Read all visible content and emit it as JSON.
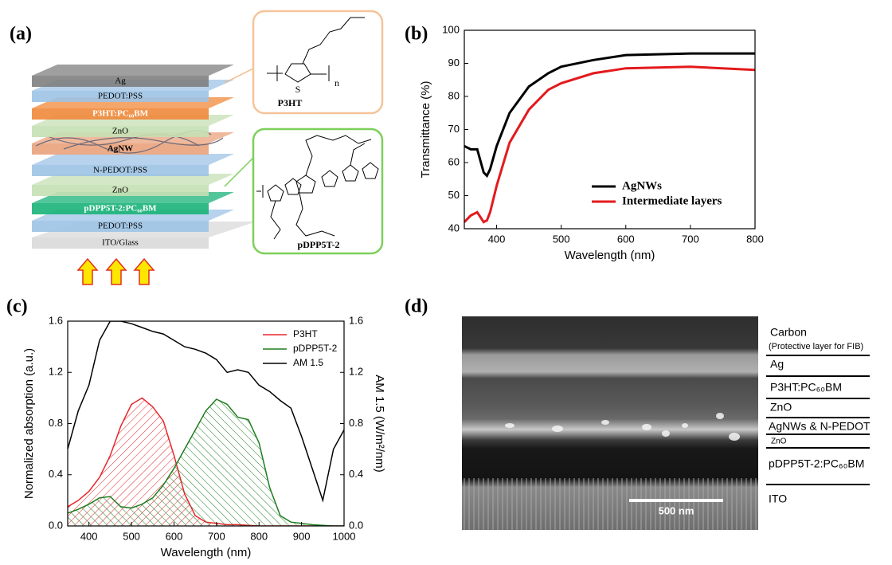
{
  "diagram": {
    "panel_label": "(a)",
    "layers": [
      "Ag",
      "PEDOT:PSS",
      "P3HT:PC₆₀BM",
      "ZnO",
      "AgNW",
      "N-PEDOT:PSS",
      "ZnO",
      "pDPP5T-2:PC₆₀BM",
      "PEDOT:PSS",
      "ITO/Glass"
    ],
    "structures": [
      {
        "name": "P3HT",
        "atom": "S",
        "repeat": "n"
      },
      {
        "name": "pDPP5T-2"
      }
    ]
  },
  "chart_data": [
    {
      "type": "line",
      "panel_label": "(b)",
      "x_label": "Wavelength (nm)",
      "y_label": "Transmittance (%)",
      "x": [
        350,
        360,
        370,
        380,
        385,
        390,
        400,
        420,
        450,
        480,
        500,
        550,
        600,
        700,
        800
      ],
      "xlim": [
        350,
        800
      ],
      "xticks": [
        400,
        500,
        600,
        700,
        800
      ],
      "ylim": [
        40,
        100
      ],
      "yticks": [
        40,
        50,
        60,
        70,
        80,
        90,
        100
      ],
      "legend_position": "lower right",
      "series": [
        {
          "name": "AgNWs",
          "color": "#000000",
          "values": [
            65,
            64,
            64,
            57,
            56,
            58,
            65,
            75,
            83,
            87,
            89,
            91,
            92.5,
            93,
            93
          ]
        },
        {
          "name": "Intermediate layers",
          "color": "#e31a1c",
          "values": [
            42,
            44,
            45,
            42,
            42.5,
            45,
            53,
            66,
            76,
            82,
            84,
            87,
            88.5,
            89,
            88
          ]
        }
      ]
    },
    {
      "type": "line",
      "panel_label": "(c)",
      "x_label": "Wavelength (nm)",
      "y_label": "Normalized absorption (a.u.)",
      "y2_label": "AM 1.5 (W/m²/nm)",
      "x": [
        350,
        375,
        400,
        425,
        450,
        475,
        500,
        525,
        550,
        575,
        600,
        625,
        650,
        675,
        700,
        725,
        750,
        775,
        800,
        825,
        850,
        875,
        900,
        925,
        950,
        975,
        1000
      ],
      "xlim": [
        350,
        1000
      ],
      "xticks": [
        400,
        500,
        600,
        700,
        800,
        900,
        1000
      ],
      "ylim": [
        0,
        1.6
      ],
      "yticks": [
        {
          "value": 0,
          "label": "0.0"
        },
        0.4,
        0.8,
        1.2,
        1.6
      ],
      "y2lim": [
        0,
        1.6
      ],
      "y2ticks": [
        {
          "value": 0,
          "label": "0.0"
        },
        0.4,
        0.8,
        1.2,
        1.6
      ],
      "legend_position": "upper right",
      "series": [
        {
          "name": "P3HT",
          "color": "#e8262a",
          "hatch": true,
          "values": [
            0.15,
            0.2,
            0.27,
            0.38,
            0.55,
            0.78,
            0.95,
            1.0,
            0.93,
            0.82,
            0.55,
            0.25,
            0.08,
            0.03,
            0.02,
            0.01,
            0.01,
            0.005,
            0,
            0,
            0,
            0,
            0,
            0,
            0,
            0,
            0
          ]
        },
        {
          "name": "pDPP5T-2",
          "color": "#1e7d1e",
          "hatch": true,
          "values": [
            0.1,
            0.13,
            0.17,
            0.22,
            0.23,
            0.15,
            0.14,
            0.17,
            0.22,
            0.32,
            0.45,
            0.6,
            0.75,
            0.9,
            0.99,
            0.95,
            0.85,
            0.83,
            0.65,
            0.3,
            0.08,
            0.03,
            0.02,
            0.01,
            0.005,
            0,
            0
          ]
        },
        {
          "name": "AM 1.5",
          "color": "#000000",
          "axis": "y2",
          "values": [
            0.6,
            0.9,
            1.1,
            1.45,
            1.6,
            1.6,
            1.58,
            1.55,
            1.52,
            1.5,
            1.45,
            1.4,
            1.38,
            1.35,
            1.3,
            1.2,
            1.22,
            1.2,
            1.1,
            1.05,
            0.98,
            0.92,
            0.7,
            0.45,
            0.2,
            0.6,
            0.75
          ]
        }
      ]
    }
  ],
  "micrograph": {
    "panel_label": "(d)",
    "layers": [
      "Carbon",
      "(Protective layer for FIB)",
      "Ag",
      "P3HT:PC₆₀BM",
      "ZnO",
      "AgNWs & N-PEDOT",
      "ZnO",
      "pDPP5T-2:PC₆₀BM",
      "ITO"
    ],
    "scale_bar": "500 nm"
  }
}
